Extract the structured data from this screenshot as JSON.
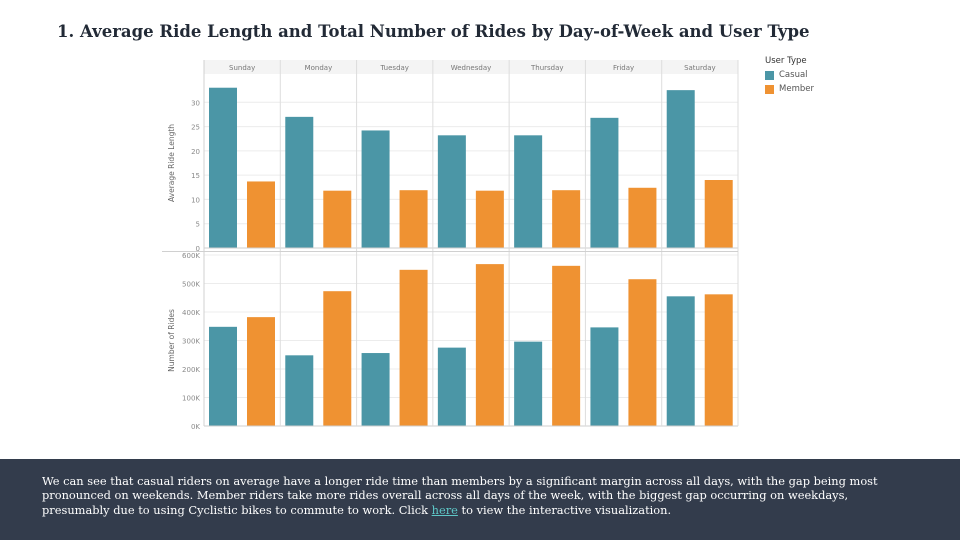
{
  "slide": {
    "title": "1. Average Ride Length and Total Number of Rides by Day-of-Week and User Type"
  },
  "legend": {
    "title": "User Type",
    "items": [
      {
        "label": "Casual",
        "color": "#4b96a6"
      },
      {
        "label": "Member",
        "color": "#ef9232"
      }
    ]
  },
  "chart_data": [
    {
      "type": "bar",
      "categories": [
        "Sunday",
        "Monday",
        "Tuesday",
        "Wednesday",
        "Thursday",
        "Friday",
        "Saturday"
      ],
      "ylabel": "Average Ride Length",
      "ylim": [
        0,
        35
      ],
      "yticks": [
        0,
        5,
        10,
        15,
        20,
        25,
        30
      ],
      "ytick_labels": [
        "0",
        "5",
        "10",
        "15",
        "20",
        "25",
        "30"
      ],
      "series": [
        {
          "name": "Casual",
          "color": "#4b96a6",
          "values": [
            33,
            27,
            24.2,
            23.2,
            23.2,
            26.8,
            32.5
          ]
        },
        {
          "name": "Member",
          "color": "#ef9232",
          "values": [
            13.7,
            11.8,
            11.9,
            11.8,
            11.9,
            12.4,
            14
          ]
        }
      ],
      "grid": true
    },
    {
      "type": "bar",
      "categories": [
        "Sunday",
        "Monday",
        "Tuesday",
        "Wednesday",
        "Thursday",
        "Friday",
        "Saturday"
      ],
      "ylabel": "Number of Rides",
      "ylim": [
        0,
        600000
      ],
      "yticks": [
        0,
        100000,
        200000,
        300000,
        400000,
        500000,
        600000
      ],
      "ytick_labels": [
        "0K",
        "100K",
        "200K",
        "300K",
        "400K",
        "500K",
        "600K"
      ],
      "series": [
        {
          "name": "Casual",
          "color": "#4b96a6",
          "values": [
            348000,
            248000,
            256000,
            275000,
            296000,
            346000,
            455000
          ]
        },
        {
          "name": "Member",
          "color": "#ef9232",
          "values": [
            382000,
            473000,
            548000,
            568000,
            562000,
            515000,
            462000
          ]
        }
      ],
      "grid": true
    }
  ],
  "footer": {
    "text_before": "We can see that casual riders on average have a longer ride time than members by a significant margin across all days, with the gap being most pronounced on weekends. Member riders take more rides overall across all days of the week, with the biggest gap occurring on weekdays, presumably due to using Cyclistic bikes to commute to work. Click ",
    "link_text": "here",
    "text_after": " to view the interactive visualization."
  }
}
